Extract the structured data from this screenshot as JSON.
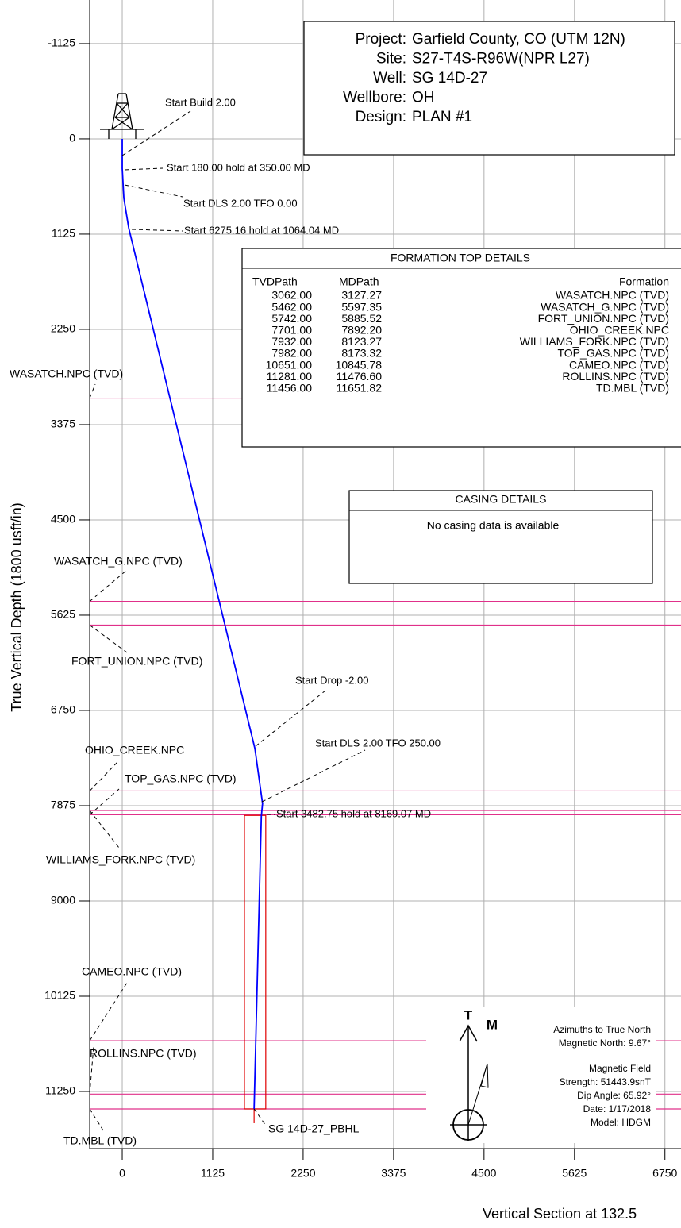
{
  "chart_data": {
    "type": "line",
    "x_label": "Vertical Section at 132.5",
    "y_label": "True Vertical Depth (1800 usft/in)",
    "xlim": [
      -405,
      6950
    ],
    "ylim": [
      -1640,
      11925
    ],
    "y_inverted": true,
    "xticks": [
      0,
      1125,
      2250,
      3375,
      4500,
      5625,
      6750
    ],
    "yticks": [
      -1125,
      0,
      1125,
      2250,
      3375,
      4500,
      5625,
      6750,
      7875,
      9000,
      10125,
      11250
    ],
    "grid": true,
    "x": [
      0,
      0,
      20,
      80,
      1650,
      1745,
      1730,
      1640
    ],
    "series": [
      {
        "color": "#0000ff",
        "values": [
          0,
          350,
          700,
          1050,
          7200,
          7850,
          8000,
          11456
        ]
      }
    ],
    "annotations": [
      "Start Build 2.00",
      "Start 180.00 hold at 350.00 MD",
      "Start DLS 2.00 TFO 0.00",
      "Start 6275.16 hold at 1064.04 MD",
      "Start Drop -2.00",
      "Start DLS 2.00 TFO 250.00",
      "Start 3482.75 hold at 8169.07 MD"
    ],
    "target": {
      "name": "SG 14D-27_PBHL",
      "color": "#e00000",
      "x": [
        1520,
        1785
      ],
      "y": [
        7990,
        11456
      ]
    },
    "formation_color": "#e0308a",
    "info": [
      [
        "Project:",
        "Garfield County, CO (UTM 12N)"
      ],
      [
        "Site:",
        "S27-T4S-R96W(NPR L27)"
      ],
      [
        "Well:",
        "SG 14D-27"
      ],
      [
        "Wellbore:",
        "OH"
      ],
      [
        "Design:",
        "PLAN #1"
      ]
    ],
    "formations": {
      "title": "FORMATION TOP DETAILS",
      "columns": [
        "TVDPath",
        "MDPath",
        "Formation"
      ],
      "rows": [
        [
          {
            "value": 3062,
            "label": "3062.00"
          },
          "3127.27",
          "WASATCH.NPC (TVD)"
        ],
        [
          {
            "value": 5462,
            "label": "5462.00"
          },
          "5597.35",
          "WASATCH_G.NPC (TVD)"
        ],
        [
          {
            "value": 5742,
            "label": "5742.00"
          },
          "5885.52",
          "FORT_UNION.NPC (TVD)"
        ],
        [
          {
            "value": 7701,
            "label": "7701.00"
          },
          "7892.20",
          "OHIO_CREEK.NPC"
        ],
        [
          {
            "value": 7932,
            "label": "7932.00"
          },
          "8123.27",
          "WILLIAMS_FORK.NPC (TVD)"
        ],
        [
          {
            "value": 7982,
            "label": "7982.00"
          },
          "8173.32",
          "TOP_GAS.NPC (TVD)"
        ],
        [
          {
            "value": 10651,
            "label": "10651.00"
          },
          "10845.78",
          "CAMEO.NPC (TVD)"
        ],
        [
          {
            "value": 11281,
            "label": "11281.00"
          },
          "11476.60",
          "ROLLINS.NPC (TVD)"
        ],
        [
          {
            "value": 11456,
            "label": "11456.00"
          },
          "11651.82",
          "TD.MBL (TVD)"
        ]
      ]
    },
    "casing": {
      "title": "CASING DETAILS",
      "message": "No casing data is available"
    },
    "north": {
      "true": "T",
      "magnetic": "M",
      "lines": [
        "Azimuths to True North",
        "Magnetic North: 9.67°",
        "Magnetic Field",
        "Strength: 51443.9snT",
        "Dip Angle: 65.92°",
        "Date: 1/17/2018",
        "Model: HDGM"
      ]
    }
  }
}
